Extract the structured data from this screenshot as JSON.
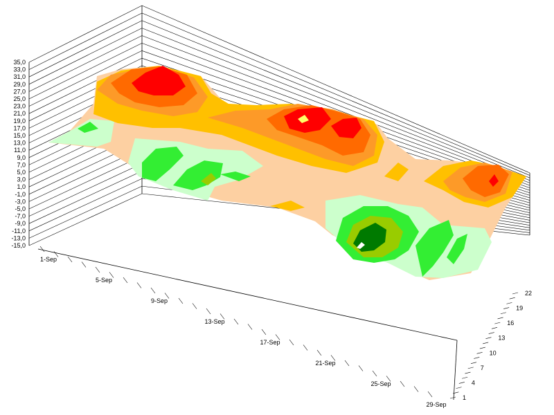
{
  "chart_data": {
    "type": "surface-3d",
    "x_axis": {
      "tick_labels": [
        "1-Sep",
        "5-Sep",
        "9-Sep",
        "13-Sep",
        "17-Sep",
        "21-Sep",
        "25-Sep",
        "29-Sep"
      ]
    },
    "y_axis": {
      "tick_labels": [
        "1",
        "4",
        "7",
        "10",
        "13",
        "16",
        "19",
        "22"
      ]
    },
    "z_axis": {
      "range": [
        -15,
        35
      ],
      "tick_labels": [
        "-15,0",
        "-13,0",
        "-11,0",
        "-9,0",
        "-7,0",
        "-5,0",
        "-3,0",
        "-1,0",
        "1,0",
        "3,0",
        "5,0",
        "7,0",
        "9,0",
        "11,0",
        "13,0",
        "15,0",
        "17,0",
        "19,0",
        "21,0",
        "23,0",
        "25,0",
        "27,0",
        "29,0",
        "31,0",
        "33,0",
        "35,0"
      ]
    },
    "color_scale": [
      "#007a00",
      "#99cc00",
      "#33ee33",
      "#ccffcc",
      "#fdd0a2",
      "#ffc000",
      "#fd9a28",
      "#ff6a00",
      "#ff0000",
      "#ffff66"
    ],
    "surface_features": [
      {
        "peak": "early September",
        "level": "high",
        "color": "#ff0000"
      },
      {
        "peak": "mid September",
        "level": "high",
        "color": "#ff0000"
      },
      {
        "peak": "late September",
        "level": "high",
        "color": "#ff0000"
      },
      {
        "trough": "around 21-Sep",
        "level": "low",
        "color": "#007a00"
      }
    ]
  }
}
